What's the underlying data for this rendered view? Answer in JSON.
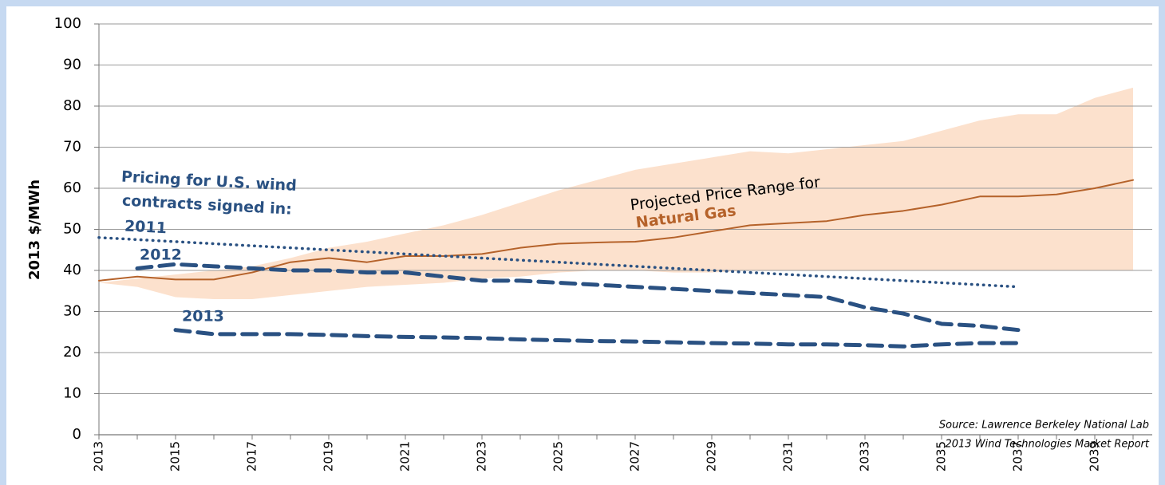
{
  "chart_data": {
    "type": "line",
    "y_label": "2013 $/MWh",
    "x": [
      2013,
      2014,
      2015,
      2016,
      2017,
      2018,
      2019,
      2020,
      2021,
      2022,
      2023,
      2024,
      2025,
      2026,
      2027,
      2028,
      2029,
      2030,
      2031,
      2032,
      2033,
      2034,
      2035,
      2036,
      2037,
      2038,
      2039,
      2040
    ],
    "xlim": [
      2013,
      2040.5
    ],
    "xticks": [
      2013,
      2015,
      2017,
      2019,
      2021,
      2023,
      2025,
      2027,
      2029,
      2031,
      2033,
      2035,
      2037,
      2039
    ],
    "ylim": [
      0,
      100
    ],
    "yticks": [
      0,
      10,
      20,
      30,
      40,
      50,
      60,
      70,
      80,
      90,
      100
    ],
    "grid": true,
    "band": {
      "color": "#fce1cd",
      "high": [
        37,
        38,
        39,
        40,
        41,
        43,
        45.5,
        47,
        49,
        51,
        53.5,
        56.5,
        59.5,
        62,
        64.5,
        66,
        67.5,
        69,
        68.5,
        69.5,
        70.5,
        71.5,
        74,
        76.5,
        78,
        78,
        82,
        84.5
      ],
      "low": [
        37,
        36,
        33.5,
        33,
        33,
        34,
        35,
        36,
        36.5,
        37,
        38,
        38.5,
        39.5,
        40,
        40,
        39.5,
        39.5,
        40,
        40,
        40,
        40,
        40,
        40,
        40,
        40,
        40,
        40,
        40
      ]
    },
    "series": [
      {
        "color": "#b5622a",
        "style": "solid",
        "values": [
          37.5,
          38.5,
          37.8,
          37.8,
          39.5,
          42,
          43,
          42,
          43.5,
          43.5,
          44,
          45.5,
          46.5,
          46.8,
          47,
          48,
          49.5,
          51,
          51.5,
          52,
          53.5,
          54.5,
          56,
          58,
          58,
          58.5,
          60,
          62
        ]
      },
      {
        "color": "#2a5182",
        "style": "dotted",
        "values": [
          48,
          47.5,
          47,
          46.5,
          46,
          45.5,
          45,
          44.5,
          44,
          43.5,
          43,
          42.5,
          42,
          41.5,
          41,
          40.5,
          40,
          39.5,
          39,
          38.5,
          38,
          37.5,
          37,
          36.5,
          36,
          null,
          null,
          null
        ]
      },
      {
        "color": "#2a5182",
        "style": "dashed",
        "values": [
          null,
          40.5,
          41.5,
          41,
          40.5,
          40,
          40,
          39.5,
          39.5,
          38.5,
          37.5,
          37.5,
          37,
          36.5,
          36,
          35.5,
          35,
          34.5,
          34,
          33.5,
          31,
          29.5,
          27,
          26.5,
          25.5,
          null,
          null,
          null
        ]
      },
      {
        "color": "#2a5182",
        "style": "dashed",
        "values": [
          null,
          null,
          25.5,
          24.5,
          24.5,
          24.5,
          24.3,
          24,
          23.8,
          23.7,
          23.5,
          23.2,
          23,
          22.8,
          22.7,
          22.5,
          22.3,
          22.2,
          22,
          22,
          21.8,
          21.5,
          22,
          22.3,
          22.3,
          null,
          null,
          null
        ]
      }
    ],
    "annotations": [
      "Pricing for U.S. wind",
      "contracts signed in:",
      "2011",
      "2012",
      "2013",
      "Projected Price Range for",
      "Natural Gas",
      "Source: Lawrence Berkeley  National Lab",
      "2013 Wind Technologies Market Report"
    ]
  }
}
